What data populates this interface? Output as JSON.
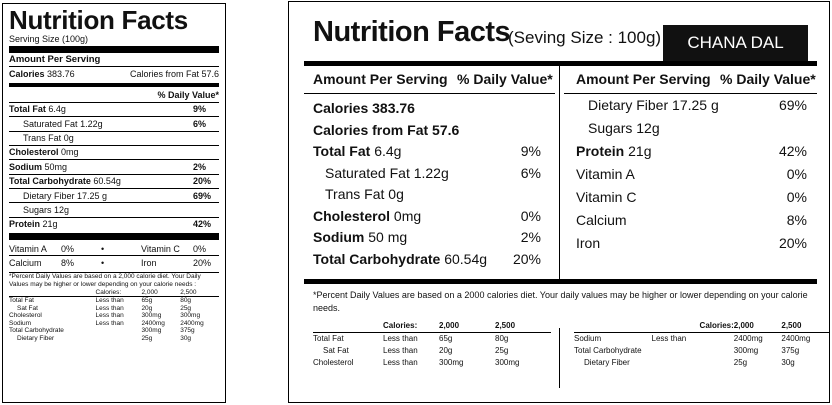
{
  "vertical_label": {
    "title": "Nutrition Facts",
    "serving": "Serving Size (100g)",
    "amount_per_serving": "Amount Per Serving",
    "calories_label": "Calories",
    "calories_value": "383.76",
    "calories_fat": "Calories from Fat 57.6",
    "dv_header": "% Daily Value*",
    "rows": [
      {
        "label": "Total Fat",
        "amount": "6.4g",
        "pct": "9%"
      },
      {
        "label": "Saturated Fat",
        "amount": "1.22g",
        "pct": "6%"
      },
      {
        "label": "Trans Fat",
        "amount": "0g",
        "pct": ""
      },
      {
        "label": "Cholesterol",
        "amount": "0mg",
        "pct": ""
      },
      {
        "label": "Sodium",
        "amount": "50mg",
        "pct": "2%"
      },
      {
        "label": "Total Carbohydrate",
        "amount": "60.54g",
        "pct": "20%"
      },
      {
        "label": "Dietary Fiber",
        "amount": "17.25 g",
        "pct": "69%"
      },
      {
        "label": "Sugars",
        "amount": "12g",
        "pct": ""
      },
      {
        "label": "Protein",
        "amount": "21g",
        "pct": "42%"
      }
    ],
    "vitamin_a": "Vitamin A",
    "vitamin_a_pct": "0%",
    "vitamin_c": "Vitamin C",
    "vitamin_c_pct": "0%",
    "calcium": "Calcium",
    "calcium_pct": "8%",
    "iron": "Iron",
    "iron_pct": "20%",
    "bullet": "•",
    "footnote": "*Percent Daily Values are based on a 2,000 calorie diet. Your Daily Values may be higher or lower depending on your calorie needs :",
    "dv_table": {
      "header": [
        "",
        "Calories:",
        "2,000",
        "2,500"
      ],
      "rows": [
        [
          "Total Fat",
          "Less than",
          "65g",
          "80g"
        ],
        [
          "Sat Fat",
          "Less than",
          "20g",
          "25g"
        ],
        [
          "Cholesterol",
          "Less than",
          "300mg",
          "300mg"
        ],
        [
          "Sodium",
          "Less than",
          "2400mg",
          "2400mg"
        ],
        [
          "Total Carbohydrate",
          "",
          "300mg",
          "375g"
        ],
        [
          "Dietary Fiber",
          "",
          "25g",
          "30g"
        ]
      ]
    }
  },
  "horizontal_label": {
    "title": "Nutrition Facts",
    "serving": "(Seving Size : 100g)",
    "product_name": "CHANA DAL",
    "amount_per_serving": "Amount Per Serving",
    "dv_header": "% Daily Value*",
    "left_rows": [
      {
        "label": "Calories 383.76",
        "amount": "",
        "pct": ""
      },
      {
        "label": "Calories from Fat 57.6",
        "amount": "",
        "pct": ""
      },
      {
        "label": "Total Fat",
        "amount": "6.4g",
        "pct": "9%"
      },
      {
        "label": "Saturated Fat",
        "amount": "1.22g",
        "pct": "6%"
      },
      {
        "label": "Trans Fat",
        "amount": "0g",
        "pct": ""
      },
      {
        "label": "Cholesterol",
        "amount": "0mg",
        "pct": "0%"
      },
      {
        "label": "Sodium",
        "amount": "50 mg",
        "pct": "2%"
      },
      {
        "label": "Total Carbohydrate",
        "amount": "60.54g",
        "pct": "20%"
      }
    ],
    "right_rows": [
      {
        "label": "Dietary Fiber",
        "amount": "17.25 g",
        "pct": "69%"
      },
      {
        "label": "Sugars",
        "amount": "12g",
        "pct": ""
      },
      {
        "label": "Protein",
        "amount": "21g",
        "pct": "42%"
      },
      {
        "label": "Vitamin A",
        "amount": "",
        "pct": "0%"
      },
      {
        "label": "Vitamin C",
        "amount": "",
        "pct": "0%"
      },
      {
        "label": "Calcium",
        "amount": "",
        "pct": "8%"
      },
      {
        "label": "Iron",
        "amount": "",
        "pct": "20%"
      }
    ],
    "footnote": "*Percent Daily Values are based on a 2000 calories diet. Your daily values may be higher or lower depending on your calorie needs.",
    "dv_left": {
      "header": [
        "",
        "Calories:",
        "2,000",
        "2,500"
      ],
      "rows": [
        [
          "Total Fat",
          "Less than",
          "65g",
          "80g"
        ],
        [
          "Sat Fat",
          "Less than",
          "20g",
          "25g"
        ],
        [
          "Cholesterol",
          "Less than",
          "300mg",
          "300mg"
        ]
      ]
    },
    "dv_right": {
      "header": [
        "",
        "",
        "Calories:",
        "2,000",
        "2,500"
      ],
      "rows": [
        [
          "Sodium",
          "Less than",
          "",
          "2400mg",
          "2400mg"
        ],
        [
          "Total Carbohydrate",
          "",
          "",
          "300mg",
          "375g"
        ],
        [
          "Dietary Fiber",
          "",
          "",
          "25g",
          "30g"
        ]
      ]
    }
  }
}
